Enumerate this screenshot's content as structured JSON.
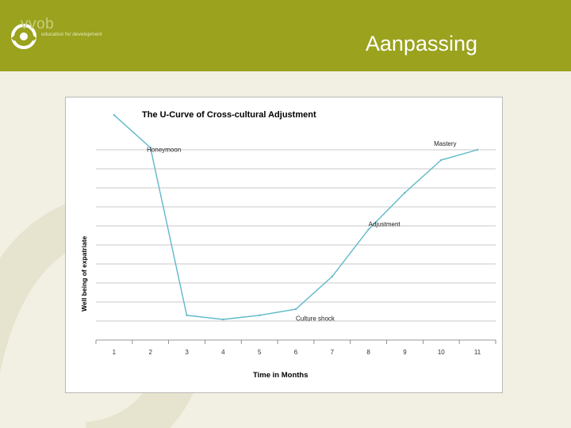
{
  "logo": {
    "word": "vvob",
    "tagline": "education for development",
    "icon": "vvob-logo-icon"
  },
  "slide": {
    "title": "Aanpassing"
  },
  "chart_data": {
    "type": "line",
    "title": "The U-Curve of Cross-cultural Adjustment",
    "xlabel": "Time in Months",
    "ylabel": "Well being of expatriate",
    "x": [
      1,
      2,
      3,
      4,
      5,
      6,
      7,
      8,
      9,
      10,
      11
    ],
    "values": [
      10,
      8.4,
      0.2,
      0,
      0.2,
      0.5,
      2.1,
      4.4,
      6.2,
      7.8,
      8.3
    ],
    "ylim": [
      0,
      8.3
    ],
    "xlim": [
      0.5,
      11.5
    ],
    "grid": true,
    "line_color": "#5fb8c9",
    "annotations": [
      {
        "text": "Honeymoon",
        "x": 1.9,
        "y": 8.2
      },
      {
        "text": "Culture shock",
        "x": 6.0,
        "y": -0.05
      },
      {
        "text": "Adjustment",
        "x": 8.0,
        "y": 4.55
      },
      {
        "text": "Mastery",
        "x": 9.8,
        "y": 8.5
      }
    ]
  }
}
